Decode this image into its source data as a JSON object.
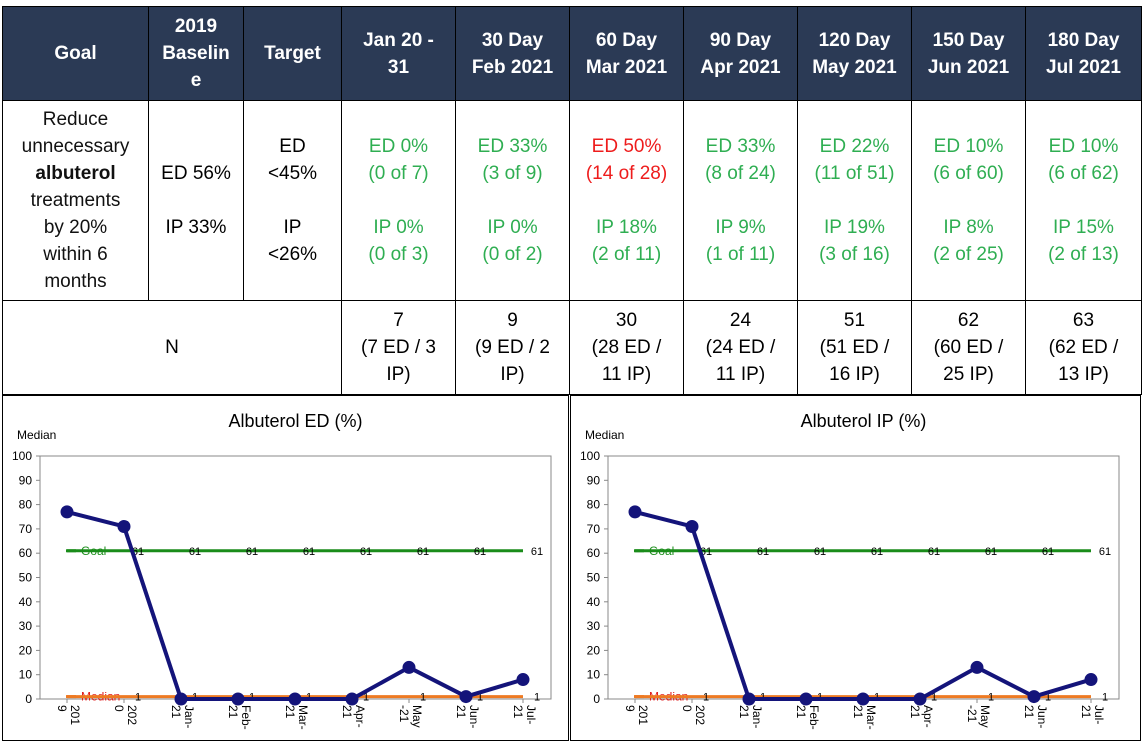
{
  "table": {
    "headers": [
      {
        "key": "goal",
        "lines": [
          "Goal"
        ]
      },
      {
        "key": "baseline",
        "lines": [
          "2019",
          "Baselin",
          "e"
        ]
      },
      {
        "key": "target",
        "lines": [
          "Target"
        ]
      },
      {
        "key": "jan",
        "lines": [
          "Jan 20 -",
          "31"
        ]
      },
      {
        "key": "d30",
        "lines": [
          "30 Day",
          "Feb 2021"
        ]
      },
      {
        "key": "d60",
        "lines": [
          "60 Day",
          "Mar 2021"
        ]
      },
      {
        "key": "d90",
        "lines": [
          "90 Day",
          "Apr 2021"
        ]
      },
      {
        "key": "d120",
        "lines": [
          "120 Day",
          "May 2021"
        ]
      },
      {
        "key": "d150",
        "lines": [
          "150 Day",
          "Jun 2021"
        ]
      },
      {
        "key": "d180",
        "lines": [
          "180 Day",
          "Jul 2021"
        ]
      }
    ],
    "goal_text": {
      "l1": "Reduce",
      "l2": "unnecessary",
      "l3": "albuterol",
      "l4": "treatments",
      "l5": "by 20%",
      "l6": "within 6",
      "l7": "months"
    },
    "baseline": {
      "ed": "ED 56%",
      "ip": "IP 33%"
    },
    "target": {
      "ed1": "ED",
      "ed2": "<45%",
      "ip1": "IP",
      "ip2": "<26%"
    },
    "periods": [
      {
        "ed_pct": "ED 0%",
        "ed_n": "(0 of 7)",
        "ed_color": "#2fae52",
        "ip_pct": "IP 0%",
        "ip_n": "(0 of 3)",
        "ip_color": "#2fae52"
      },
      {
        "ed_pct": "ED 33%",
        "ed_n": "(3 of 9)",
        "ed_color": "#2fae52",
        "ip_pct": "IP 0%",
        "ip_n": "(0 of 2)",
        "ip_color": "#2fae52"
      },
      {
        "ed_pct": "ED 50%",
        "ed_n": "(14 of 28)",
        "ed_color": "#ee1c1c",
        "ip_pct": "IP 18%",
        "ip_n": "(2 of 11)",
        "ip_color": "#2fae52"
      },
      {
        "ed_pct": "ED 33%",
        "ed_n": "(8 of 24)",
        "ed_color": "#2fae52",
        "ip_pct": "IP 9%",
        "ip_n": "(1 of 11)",
        "ip_color": "#2fae52"
      },
      {
        "ed_pct": "ED 22%",
        "ed_n": "(11 of 51)",
        "ed_color": "#2fae52",
        "ip_pct": "IP 19%",
        "ip_n": "(3 of 16)",
        "ip_color": "#2fae52"
      },
      {
        "ed_pct": "ED 10%",
        "ed_n": "(6 of 60)",
        "ed_color": "#2fae52",
        "ip_pct": "IP 8%",
        "ip_n": "(2 of 25)",
        "ip_color": "#2fae52"
      },
      {
        "ed_pct": "ED 10%",
        "ed_n": "(6 of 62)",
        "ed_color": "#2fae52",
        "ip_pct": "IP 15%",
        "ip_n": "(2 of 13)",
        "ip_color": "#2fae52"
      }
    ],
    "n_label": "N",
    "n_cells": [
      [
        "7",
        "(7 ED / 3",
        "IP)"
      ],
      [
        "9",
        "(9 ED / 2",
        "IP)"
      ],
      [
        "30",
        "(28 ED /",
        "11 IP)"
      ],
      [
        "24",
        "(24 ED /",
        "11 IP)"
      ],
      [
        "51",
        "(51 ED /",
        "16 IP)"
      ],
      [
        "62",
        "(60 ED /",
        "25 IP)"
      ],
      [
        "63",
        "(62 ED /",
        "13 IP)"
      ]
    ]
  },
  "chart_data": [
    {
      "type": "line",
      "title": "Albuterol ED (%)",
      "ylabel_top": "Median",
      "ylim": [
        0,
        100
      ],
      "yticks": [
        0,
        10,
        20,
        30,
        40,
        50,
        60,
        70,
        80,
        90,
        100
      ],
      "categories": [
        [
          "201",
          "9"
        ],
        [
          "202",
          "0"
        ],
        [
          "Jan-",
          "21"
        ],
        [
          "Feb-",
          "21"
        ],
        [
          "Mar-",
          "21"
        ],
        [
          "Apr-",
          "21"
        ],
        [
          "May",
          "-21"
        ],
        [
          "Jun-",
          "21"
        ],
        [
          "Jul-",
          "21"
        ]
      ],
      "series": [
        {
          "role": "data",
          "values": [
            77,
            71,
            0,
            0,
            0,
            0,
            13,
            1,
            8
          ],
          "color": "#14147a"
        },
        {
          "role": "goal",
          "name": "Goal",
          "values": [
            61,
            61,
            61,
            61,
            61,
            61,
            61,
            61,
            61
          ],
          "color": "#1a8c1a",
          "labels": [
            "",
            "61",
            "61",
            "61",
            "61",
            "61",
            "61",
            "61",
            "61"
          ]
        },
        {
          "role": "median",
          "name": "Median",
          "values": [
            1,
            1,
            1,
            1,
            1,
            1,
            1,
            1,
            1
          ],
          "color": "#ee7a22",
          "labels": [
            "",
            "1",
            "1",
            "1",
            "1",
            "1",
            "1",
            "1",
            "1"
          ]
        }
      ]
    },
    {
      "type": "line",
      "title": "Albuterol IP (%)",
      "ylabel_top": "Median",
      "ylim": [
        0,
        100
      ],
      "yticks": [
        0,
        10,
        20,
        30,
        40,
        50,
        60,
        70,
        80,
        90,
        100
      ],
      "categories": [
        [
          "201",
          "9"
        ],
        [
          "202",
          "0"
        ],
        [
          "Jan-",
          "21"
        ],
        [
          "Feb-",
          "21"
        ],
        [
          "Mar-",
          "21"
        ],
        [
          "Apr-",
          "21"
        ],
        [
          "May",
          "-21"
        ],
        [
          "Jun-",
          "21"
        ],
        [
          "Jul-",
          "21"
        ]
      ],
      "series": [
        {
          "role": "data",
          "values": [
            77,
            71,
            0,
            0,
            0,
            0,
            13,
            1,
            8
          ],
          "color": "#14147a"
        },
        {
          "role": "goal",
          "name": "Goal",
          "values": [
            61,
            61,
            61,
            61,
            61,
            61,
            61,
            61,
            61
          ],
          "color": "#1a8c1a",
          "labels": [
            "",
            "61",
            "61",
            "61",
            "61",
            "61",
            "61",
            "61",
            "61"
          ]
        },
        {
          "role": "median",
          "name": "Median",
          "values": [
            1,
            1,
            1,
            1,
            1,
            1,
            1,
            1,
            1
          ],
          "color": "#ee7a22",
          "labels": [
            "",
            "1",
            "1",
            "1",
            "1",
            "1",
            "1",
            "1",
            "1"
          ]
        }
      ]
    }
  ]
}
